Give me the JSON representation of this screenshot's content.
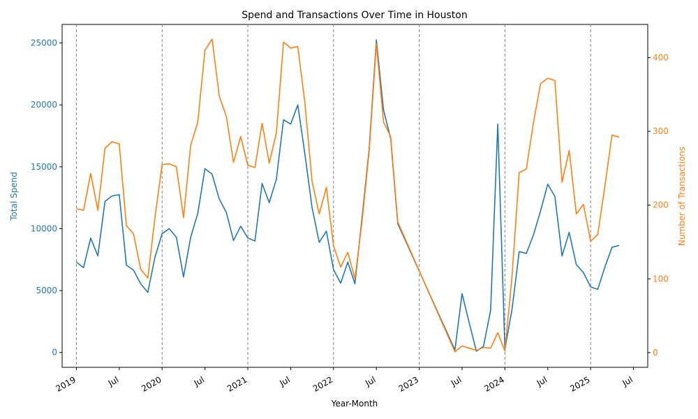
{
  "chart_data": {
    "type": "line",
    "title": "Spend and Transactions Over Time in Houston",
    "xlabel": "Year-Month",
    "ylabel_left": "Total Spend",
    "ylabel_right": "Number of Transactions",
    "x_tick_labels": [
      "2019",
      "Jul",
      "2020",
      "Jul",
      "2021",
      "Jul",
      "2022",
      "Jul",
      "2023",
      "Jul",
      "2024",
      "Jul",
      "2025",
      "Jul"
    ],
    "y_left_ticks": [
      0,
      5000,
      10000,
      15000,
      20000,
      25000
    ],
    "y_right_ticks": [
      0,
      100,
      200,
      300,
      400
    ],
    "y_left_range": [
      -1200,
      26500
    ],
    "y_right_range": [
      -20,
      445
    ],
    "x_range": [
      "2018-11",
      "2025-09"
    ],
    "year_lines": [
      "2019-01",
      "2020-01",
      "2021-01",
      "2022-01",
      "2023-01",
      "2024-01",
      "2025-01"
    ],
    "grid": false,
    "colors": {
      "spend": "#1f77b4",
      "transactions": "#ff7f0e",
      "year_line": "#808080"
    },
    "x": [
      "2019-01",
      "2019-02",
      "2019-03",
      "2019-04",
      "2019-05",
      "2019-06",
      "2019-07",
      "2019-08",
      "2019-09",
      "2019-10",
      "2019-11",
      "2019-12",
      "2020-01",
      "2020-02",
      "2020-03",
      "2020-04",
      "2020-05",
      "2020-06",
      "2020-07",
      "2020-08",
      "2020-09",
      "2020-10",
      "2020-11",
      "2020-12",
      "2021-01",
      "2021-02",
      "2021-03",
      "2021-04",
      "2021-05",
      "2021-06",
      "2021-07",
      "2021-08",
      "2021-09",
      "2021-10",
      "2021-11",
      "2021-12",
      "2022-01",
      "2022-02",
      "2022-03",
      "2022-04",
      "2022-05",
      "2022-06",
      "2022-07",
      "2022-08",
      "2022-09",
      "2022-10",
      "2023-06",
      "2023-07",
      "2023-08",
      "2023-09",
      "2023-10",
      "2023-11",
      "2023-12",
      "2024-01",
      "2024-02",
      "2024-03",
      "2024-04",
      "2024-05",
      "2024-06",
      "2024-07",
      "2024-08",
      "2024-09",
      "2024-10",
      "2024-11",
      "2024-12",
      "2025-01",
      "2025-02",
      "2025-03",
      "2025-04",
      "2025-05"
    ],
    "series": [
      {
        "key": "spend",
        "axis": "left",
        "values": [
          7300,
          6850,
          9250,
          7800,
          12200,
          12650,
          12750,
          7050,
          6650,
          5550,
          4850,
          7700,
          9600,
          10000,
          9300,
          6100,
          9300,
          11250,
          14850,
          14400,
          12400,
          11300,
          9050,
          10200,
          9250,
          9000,
          13650,
          12100,
          14000,
          18800,
          18450,
          20000,
          16000,
          11700,
          8900,
          9800,
          6700,
          5600,
          7300,
          5550,
          10900,
          16500,
          25250,
          19600,
          17300,
          10400,
          200,
          4750,
          2400,
          100,
          500,
          3400,
          18450,
          250,
          3500,
          8150,
          8000,
          9500,
          11450,
          13600,
          12600,
          7800,
          9700,
          7100,
          6450,
          5300,
          5100,
          6900,
          8500,
          8650
        ]
      },
      {
        "key": "transactions",
        "axis": "right",
        "values": [
          195,
          193,
          243,
          193,
          277,
          286,
          283,
          172,
          161,
          113,
          101,
          183,
          255,
          256,
          252,
          183,
          281,
          313,
          410,
          425,
          348,
          320,
          258,
          293,
          254,
          251,
          311,
          257,
          298,
          421,
          413,
          415,
          338,
          232,
          188,
          224,
          145,
          116,
          136,
          100,
          178,
          274,
          419,
          313,
          293,
          177,
          1,
          9,
          6,
          3,
          7,
          6,
          27,
          2,
          104,
          244,
          249,
          312,
          365,
          372,
          369,
          231,
          274,
          188,
          201,
          151,
          160,
          226,
          295,
          292
        ]
      }
    ]
  }
}
